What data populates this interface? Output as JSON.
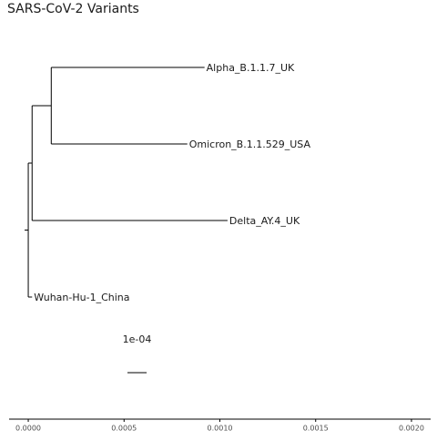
{
  "title": "SARS-CoV-2 Variants",
  "tree": {
    "tips": [
      {
        "label": "Alpha_B.1.1.7_UK",
        "x": 0.00092
      },
      {
        "label": "Omicron_B.1.1.529_USA",
        "x": 0.00083
      },
      {
        "label": "Delta_AY.4_UK",
        "x": 0.00104
      },
      {
        "label": "Wuhan-Hu-1_China",
        "x": 2e-05
      }
    ],
    "internal_nodes": [
      {
        "name": "root",
        "x": 0.0
      },
      {
        "name": "node_alpha_delta_omicron",
        "x": 2e-05
      },
      {
        "name": "node_alpha_omicron",
        "x": 0.00012
      }
    ]
  },
  "scale_bar": {
    "label": "1e-04",
    "value": 0.0001
  },
  "x_axis": {
    "ticks": [
      "0.0000",
      "0.0005",
      "0.0010",
      "0.0015",
      "0.0020"
    ],
    "tick_values": [
      0,
      0.0005,
      0.001,
      0.0015,
      0.002
    ],
    "range": [
      -0.0001,
      0.0021
    ]
  },
  "colors": {
    "line": "#000000",
    "text": "#1a1a1a",
    "axis_text": "#4d4d4d"
  }
}
